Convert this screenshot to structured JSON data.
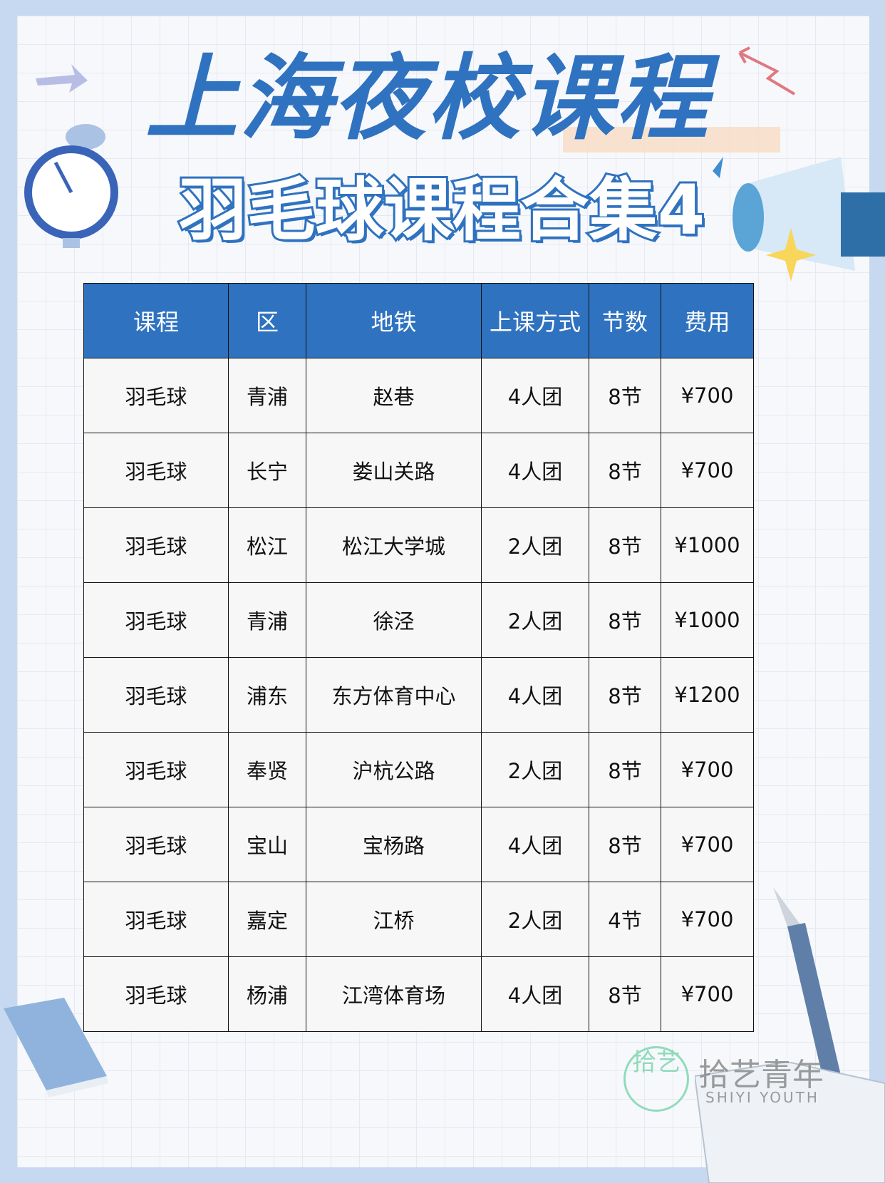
{
  "title": "上海夜校课程",
  "subtitle": "羽毛球课程合集4",
  "colors": {
    "accent": "#2f72c0",
    "frame": "#c6d9f0",
    "highlight": "#f8dcc4"
  },
  "table": {
    "headers": [
      "课程",
      "区",
      "地铁",
      "上课方式",
      "节数",
      "费用"
    ],
    "rows": [
      [
        "羽毛球",
        "青浦",
        "赵巷",
        "4人团",
        "8节",
        "¥700"
      ],
      [
        "羽毛球",
        "长宁",
        "娄山关路",
        "4人团",
        "8节",
        "¥700"
      ],
      [
        "羽毛球",
        "松江",
        "松江大学城",
        "2人团",
        "8节",
        "¥1000"
      ],
      [
        "羽毛球",
        "青浦",
        "徐泾",
        "2人团",
        "8节",
        "¥1000"
      ],
      [
        "羽毛球",
        "浦东",
        "东方体育中心",
        "4人团",
        "8节",
        "¥1200"
      ],
      [
        "羽毛球",
        "奉贤",
        "沪杭公路",
        "2人团",
        "8节",
        "¥700"
      ],
      [
        "羽毛球",
        "宝山",
        "宝杨路",
        "4人团",
        "8节",
        "¥700"
      ],
      [
        "羽毛球",
        "嘉定",
        "江桥",
        "2人团",
        "4节",
        "¥700"
      ],
      [
        "羽毛球",
        "杨浦",
        "江湾体育场",
        "4人团",
        "8节",
        "¥700"
      ]
    ]
  },
  "watermark": {
    "logo": "拾艺",
    "name": "拾艺青年",
    "english": "SHIYI YOUTH"
  },
  "icons": [
    "alarm-clock-icon",
    "megaphone-icon",
    "arrow-icon",
    "fountain-pen-icon",
    "book-icon",
    "sparkle-icon"
  ]
}
